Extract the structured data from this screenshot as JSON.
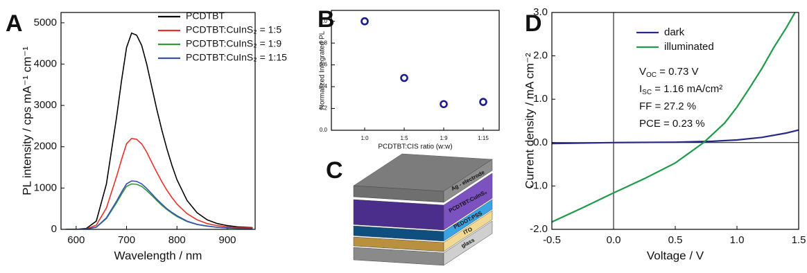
{
  "chart_data": [
    {
      "type": "line",
      "panel": "A",
      "xlabel": "Wavelength / nm",
      "ylabel": "PL intensity / cps mA⁻¹ cm⁻¹",
      "xlim": [
        570,
        955
      ],
      "xticks": [
        600,
        700,
        800,
        900
      ],
      "ylim": [
        0,
        5250
      ],
      "yticks": [
        0,
        1000,
        2000,
        3000,
        4000,
        5000
      ],
      "x": [
        580,
        600,
        620,
        640,
        660,
        680,
        690,
        700,
        710,
        720,
        730,
        740,
        750,
        760,
        770,
        780,
        790,
        800,
        820,
        840,
        860,
        880,
        900,
        920,
        950
      ],
      "series": [
        {
          "name": "PCDTBT",
          "color": "#000000",
          "values": [
            0,
            0,
            20,
            200,
            1100,
            2700,
            3600,
            4400,
            4750,
            4700,
            4450,
            4000,
            3450,
            2900,
            2400,
            1950,
            1550,
            1200,
            700,
            400,
            230,
            140,
            90,
            60,
            40
          ]
        },
        {
          "name": "PCDTBT:CuInS₂ = 1:5",
          "color": "#e8312a",
          "values": [
            0,
            0,
            10,
            100,
            520,
            1270,
            1690,
            2070,
            2200,
            2180,
            2070,
            1870,
            1620,
            1380,
            1150,
            950,
            770,
            610,
            380,
            230,
            140,
            90,
            60,
            40,
            30
          ]
        },
        {
          "name": "PCDTBT:CuInS₂ = 1:9",
          "color": "#2e9a3a",
          "values": [
            0,
            0,
            5,
            50,
            260,
            640,
            850,
            1040,
            1100,
            1090,
            1040,
            940,
            820,
            700,
            580,
            480,
            390,
            310,
            190,
            115,
            75,
            48,
            33,
            24,
            18
          ]
        },
        {
          "name": "PCDTBT:CuInS₂ = 1:15",
          "color": "#3a4fb0",
          "values": [
            0,
            0,
            5,
            55,
            280,
            680,
            900,
            1100,
            1170,
            1160,
            1100,
            990,
            860,
            730,
            610,
            500,
            410,
            330,
            200,
            120,
            80,
            50,
            35,
            25,
            20
          ]
        }
      ]
    },
    {
      "type": "scatter",
      "panel": "B",
      "xlabel": "PCDTBT:CIS ratio (w:w)",
      "ylabel": "Normalized Integrated PL",
      "categories": [
        "1:0",
        "1:5",
        "1:9",
        "1:15"
      ],
      "values": [
        1.0,
        0.48,
        0.24,
        0.26
      ],
      "color": "#1c1c8c",
      "ylim": [
        0,
        1.1
      ],
      "yticks": [
        {
          "value": 0,
          "label": "0.0"
        },
        {
          "value": 0.2,
          "label": "0.2"
        },
        {
          "value": 0.4,
          "label": "0.4"
        },
        {
          "value": 0.6,
          "label": "0.6"
        },
        {
          "value": 0.8,
          "label": "0.8"
        },
        {
          "value": 1.0,
          "label": "1.0"
        }
      ]
    },
    {
      "type": "line",
      "panel": "D",
      "xlabel": "Voltage / V",
      "ylabel": "Current density / mA cm⁻²",
      "xlim": [
        -0.5,
        1.5
      ],
      "xticks": [
        {
          "value": -0.5,
          "label": "-0.5"
        },
        {
          "value": 0,
          "label": "0.0"
        },
        {
          "value": 0.5,
          "label": "0.5"
        },
        {
          "value": 1.0,
          "label": "1.0"
        },
        {
          "value": 1.5,
          "label": "1.5"
        }
      ],
      "ylim": [
        -2.0,
        3.0
      ],
      "yticks": [
        {
          "value": -2.0,
          "label": "-2.0"
        },
        {
          "value": -1.0,
          "label": "-1.0"
        },
        {
          "value": 0,
          "label": "0.0"
        },
        {
          "value": 1.0,
          "label": "1.0"
        },
        {
          "value": 2.0,
          "label": "2.0"
        },
        {
          "value": 3.0,
          "label": "3.0"
        }
      ],
      "series": [
        {
          "name": "dark",
          "color": "#28288a",
          "x": [
            -0.5,
            0,
            0.5,
            0.8,
            1.0,
            1.2,
            1.4,
            1.5
          ],
          "values": [
            -0.02,
            0,
            0.01,
            0.03,
            0.06,
            0.12,
            0.22,
            0.29
          ]
        },
        {
          "name": "illuminated",
          "color": "#1f9a4a",
          "x": [
            -0.5,
            -0.25,
            0,
            0.25,
            0.5,
            0.73,
            0.9,
            1.0,
            1.1,
            1.2,
            1.3,
            1.4,
            1.47
          ],
          "values": [
            -1.83,
            -1.5,
            -1.16,
            -0.83,
            -0.47,
            0,
            0.45,
            0.82,
            1.25,
            1.7,
            2.2,
            2.65,
            3.0
          ]
        }
      ],
      "annotations": [
        {
          "main": "V",
          "sub": "OC",
          "rest": " = 0.73 V"
        },
        {
          "main": "I",
          "sub": "SC",
          "rest": " = 1.16 mA/cm²"
        },
        {
          "main": "FF = 27.2 %"
        },
        {
          "main": "PCE = 0.23 %"
        }
      ]
    }
  ],
  "diagram": {
    "panel": "C",
    "layers": [
      "Ag - electrode",
      "PCDTBT:CuInS₂",
      "PEDOT:PSS",
      "ITO",
      "glass"
    ]
  }
}
